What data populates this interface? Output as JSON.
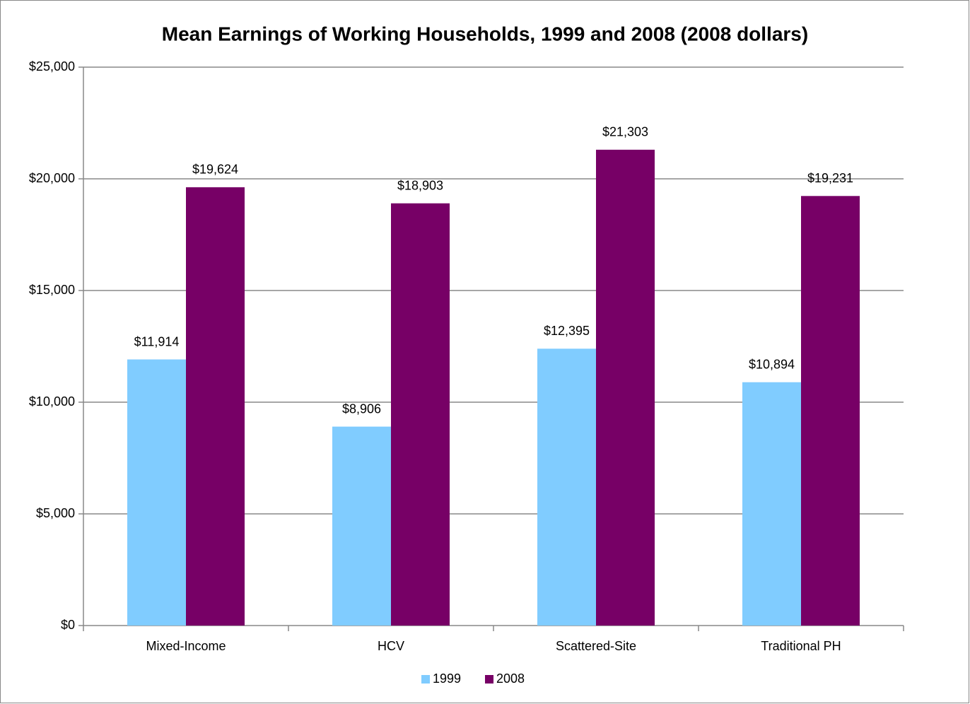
{
  "chart_data": {
    "type": "bar",
    "title": "Mean Earnings of Working Households, 1999 and 2008 (2008 dollars)",
    "categories": [
      "Mixed-Income",
      "HCV",
      "Scattered-Site",
      "Traditional PH"
    ],
    "series": [
      {
        "name": "1999",
        "color": "#80ccff",
        "values": [
          11914,
          8906,
          12395,
          10894
        ],
        "value_labels": [
          "$11,914",
          "$8,906",
          "$12,395",
          "$10,894"
        ]
      },
      {
        "name": "2008",
        "color": "#770066",
        "values": [
          19624,
          18903,
          21303,
          19231
        ],
        "value_labels": [
          "$19,624",
          "$18,903",
          "$21,303",
          "$19,231"
        ]
      }
    ],
    "ylim": [
      0,
      25000
    ],
    "yticks": [
      {
        "value": 0,
        "label": "$0"
      },
      {
        "value": 5000,
        "label": "$5,000"
      },
      {
        "value": 10000,
        "label": "$10,000"
      },
      {
        "value": 15000,
        "label": "$15,000"
      },
      {
        "value": 20000,
        "label": "$20,000"
      },
      {
        "value": 25000,
        "label": "$25,000"
      }
    ],
    "grid": true,
    "legend": "bottom"
  }
}
